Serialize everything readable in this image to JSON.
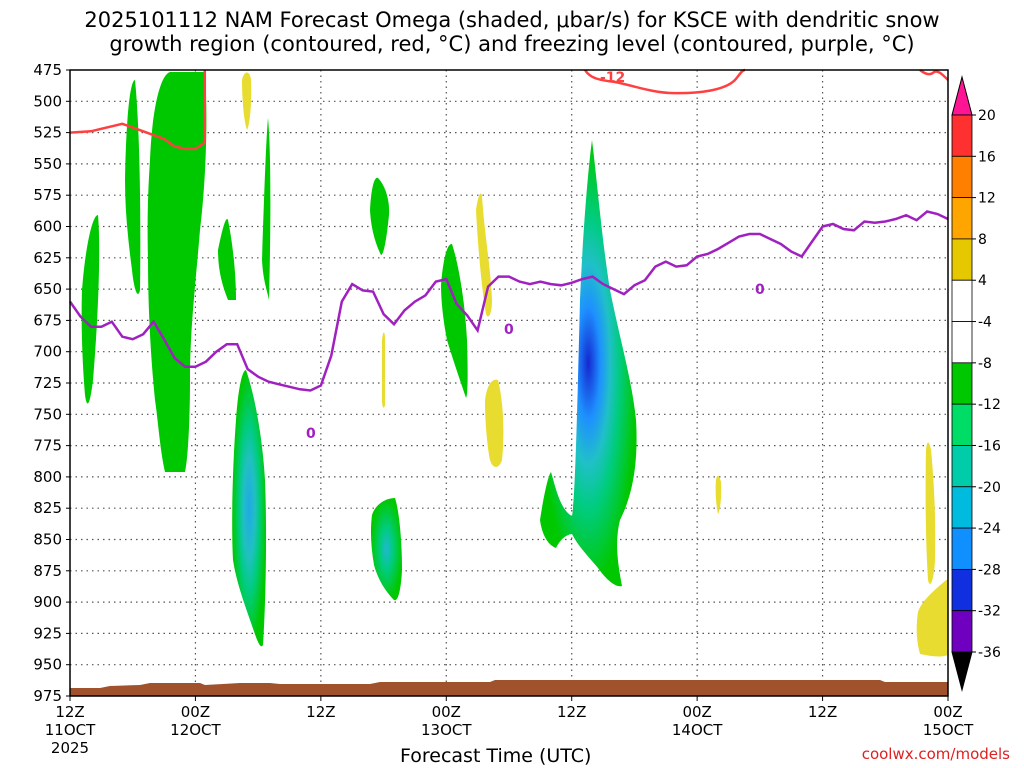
{
  "title_line1": "2025101112 NAM Forecast Omega (shaded, μbar/s) for KSCE with dendritic snow",
  "title_line2": "growth region (contoured, red, °C) and freezing level (contoured, purple, °C)",
  "x_axis_title": "Forecast Time (UTC)",
  "credit": "coolwx.com/models",
  "chart_data": {
    "type": "heatmap",
    "title": "2025101112 NAM Forecast Omega (shaded, μbar/s) for KSCE with dendritic snow growth region (contoured, red, °C) and freezing level (contoured, purple, °C)",
    "xlabel": "Forecast Time (UTC)",
    "ylabel": "",
    "y_levels_mb": [
      475,
      500,
      525,
      550,
      575,
      600,
      625,
      650,
      675,
      700,
      725,
      750,
      775,
      800,
      825,
      850,
      875,
      900,
      925,
      950,
      975
    ],
    "ylim": [
      475,
      975
    ],
    "x_ticks": [
      {
        "hour": 0,
        "top": "12Z",
        "bottom": "11OCT",
        "extra": "2025"
      },
      {
        "hour": 12,
        "top": "00Z",
        "bottom": "12OCT",
        "extra": ""
      },
      {
        "hour": 24,
        "top": "12Z",
        "bottom": "",
        "extra": ""
      },
      {
        "hour": 36,
        "top": "00Z",
        "bottom": "13OCT",
        "extra": ""
      },
      {
        "hour": 48,
        "top": "12Z",
        "bottom": "",
        "extra": ""
      },
      {
        "hour": 60,
        "top": "00Z",
        "bottom": "14OCT",
        "extra": ""
      },
      {
        "hour": 72,
        "top": "12Z",
        "bottom": "",
        "extra": ""
      },
      {
        "hour": 84,
        "top": "00Z",
        "bottom": "15OCT",
        "extra": ""
      }
    ],
    "xlim_hours": [
      0,
      84
    ],
    "colorbar": {
      "labels": [
        20,
        16,
        12,
        8,
        4,
        -4,
        -8,
        -12,
        -16,
        -20,
        -24,
        -28,
        -32,
        -36
      ],
      "colors": [
        "#ff1493",
        "#ff3030",
        "#ff7f00",
        "#ffa500",
        "#e6c800",
        "#f0e020",
        "#ffffff",
        "#00c800",
        "#00dd66",
        "#00ccaa",
        "#00bbdd",
        "#1090ff",
        "#1030e0",
        "#7000c0",
        "#a000c0",
        "#a0a0a0",
        "#000000"
      ]
    },
    "contours": [
      {
        "label": "-12",
        "color": "#ff4040"
      },
      {
        "label": "0",
        "color": "#a020c0"
      }
    ],
    "freezing_level_points": [
      [
        0,
        660
      ],
      [
        1,
        672
      ],
      [
        2,
        680
      ],
      [
        3,
        680
      ],
      [
        4,
        676
      ],
      [
        5,
        688
      ],
      [
        6,
        690
      ],
      [
        7,
        686
      ],
      [
        8,
        676
      ],
      [
        9,
        690
      ],
      [
        10,
        705
      ],
      [
        11,
        712
      ],
      [
        12,
        712
      ],
      [
        13,
        708
      ],
      [
        14,
        700
      ],
      [
        15,
        694
      ],
      [
        16,
        694
      ],
      [
        17,
        714
      ],
      [
        18,
        720
      ],
      [
        19,
        724
      ],
      [
        20,
        726
      ],
      [
        21,
        728
      ],
      [
        22,
        730
      ],
      [
        23,
        731
      ],
      [
        24,
        727
      ],
      [
        25,
        703
      ],
      [
        26,
        660
      ],
      [
        27,
        646
      ],
      [
        28,
        651
      ],
      [
        29,
        652
      ],
      [
        30,
        670
      ],
      [
        31,
        678
      ],
      [
        32,
        667
      ],
      [
        33,
        660
      ],
      [
        34,
        655
      ],
      [
        35,
        644
      ],
      [
        36,
        642
      ],
      [
        37,
        662
      ],
      [
        38,
        671
      ],
      [
        39,
        683
      ],
      [
        40,
        648
      ],
      [
        41,
        640
      ],
      [
        42,
        640
      ],
      [
        43,
        644
      ],
      [
        44,
        646
      ],
      [
        45,
        644
      ],
      [
        46,
        646
      ],
      [
        47,
        647
      ],
      [
        48,
        645
      ],
      [
        49,
        642
      ],
      [
        50,
        640
      ],
      [
        51,
        646
      ],
      [
        52,
        650
      ],
      [
        53,
        654
      ],
      [
        54,
        647
      ],
      [
        55,
        643
      ],
      [
        56,
        632
      ],
      [
        57,
        628
      ],
      [
        58,
        632
      ],
      [
        59,
        631
      ],
      [
        60,
        624
      ],
      [
        61,
        622
      ],
      [
        62,
        618
      ],
      [
        63,
        613
      ],
      [
        64,
        608
      ],
      [
        65,
        606
      ],
      [
        66,
        606
      ],
      [
        67,
        610
      ],
      [
        68,
        614
      ],
      [
        69,
        620
      ],
      [
        70,
        624
      ],
      [
        71,
        612
      ],
      [
        72,
        600
      ],
      [
        73,
        598
      ],
      [
        74,
        602
      ],
      [
        75,
        603
      ],
      [
        76,
        596
      ],
      [
        77,
        597
      ],
      [
        78,
        596
      ],
      [
        79,
        594
      ],
      [
        80,
        591
      ],
      [
        81,
        595
      ],
      [
        82,
        588
      ],
      [
        83,
        590
      ],
      [
        84,
        594
      ]
    ],
    "dgz_minus12_points": [
      [
        0,
        525
      ],
      [
        2,
        524
      ],
      [
        4,
        520
      ],
      [
        5,
        518
      ],
      [
        7,
        524
      ],
      [
        9,
        530
      ],
      [
        10,
        536
      ],
      [
        11,
        538
      ],
      [
        12,
        538
      ],
      [
        12.9,
        533
      ],
      [
        12.9,
        475
      ]
    ],
    "terrain_top_mb": 970
  }
}
